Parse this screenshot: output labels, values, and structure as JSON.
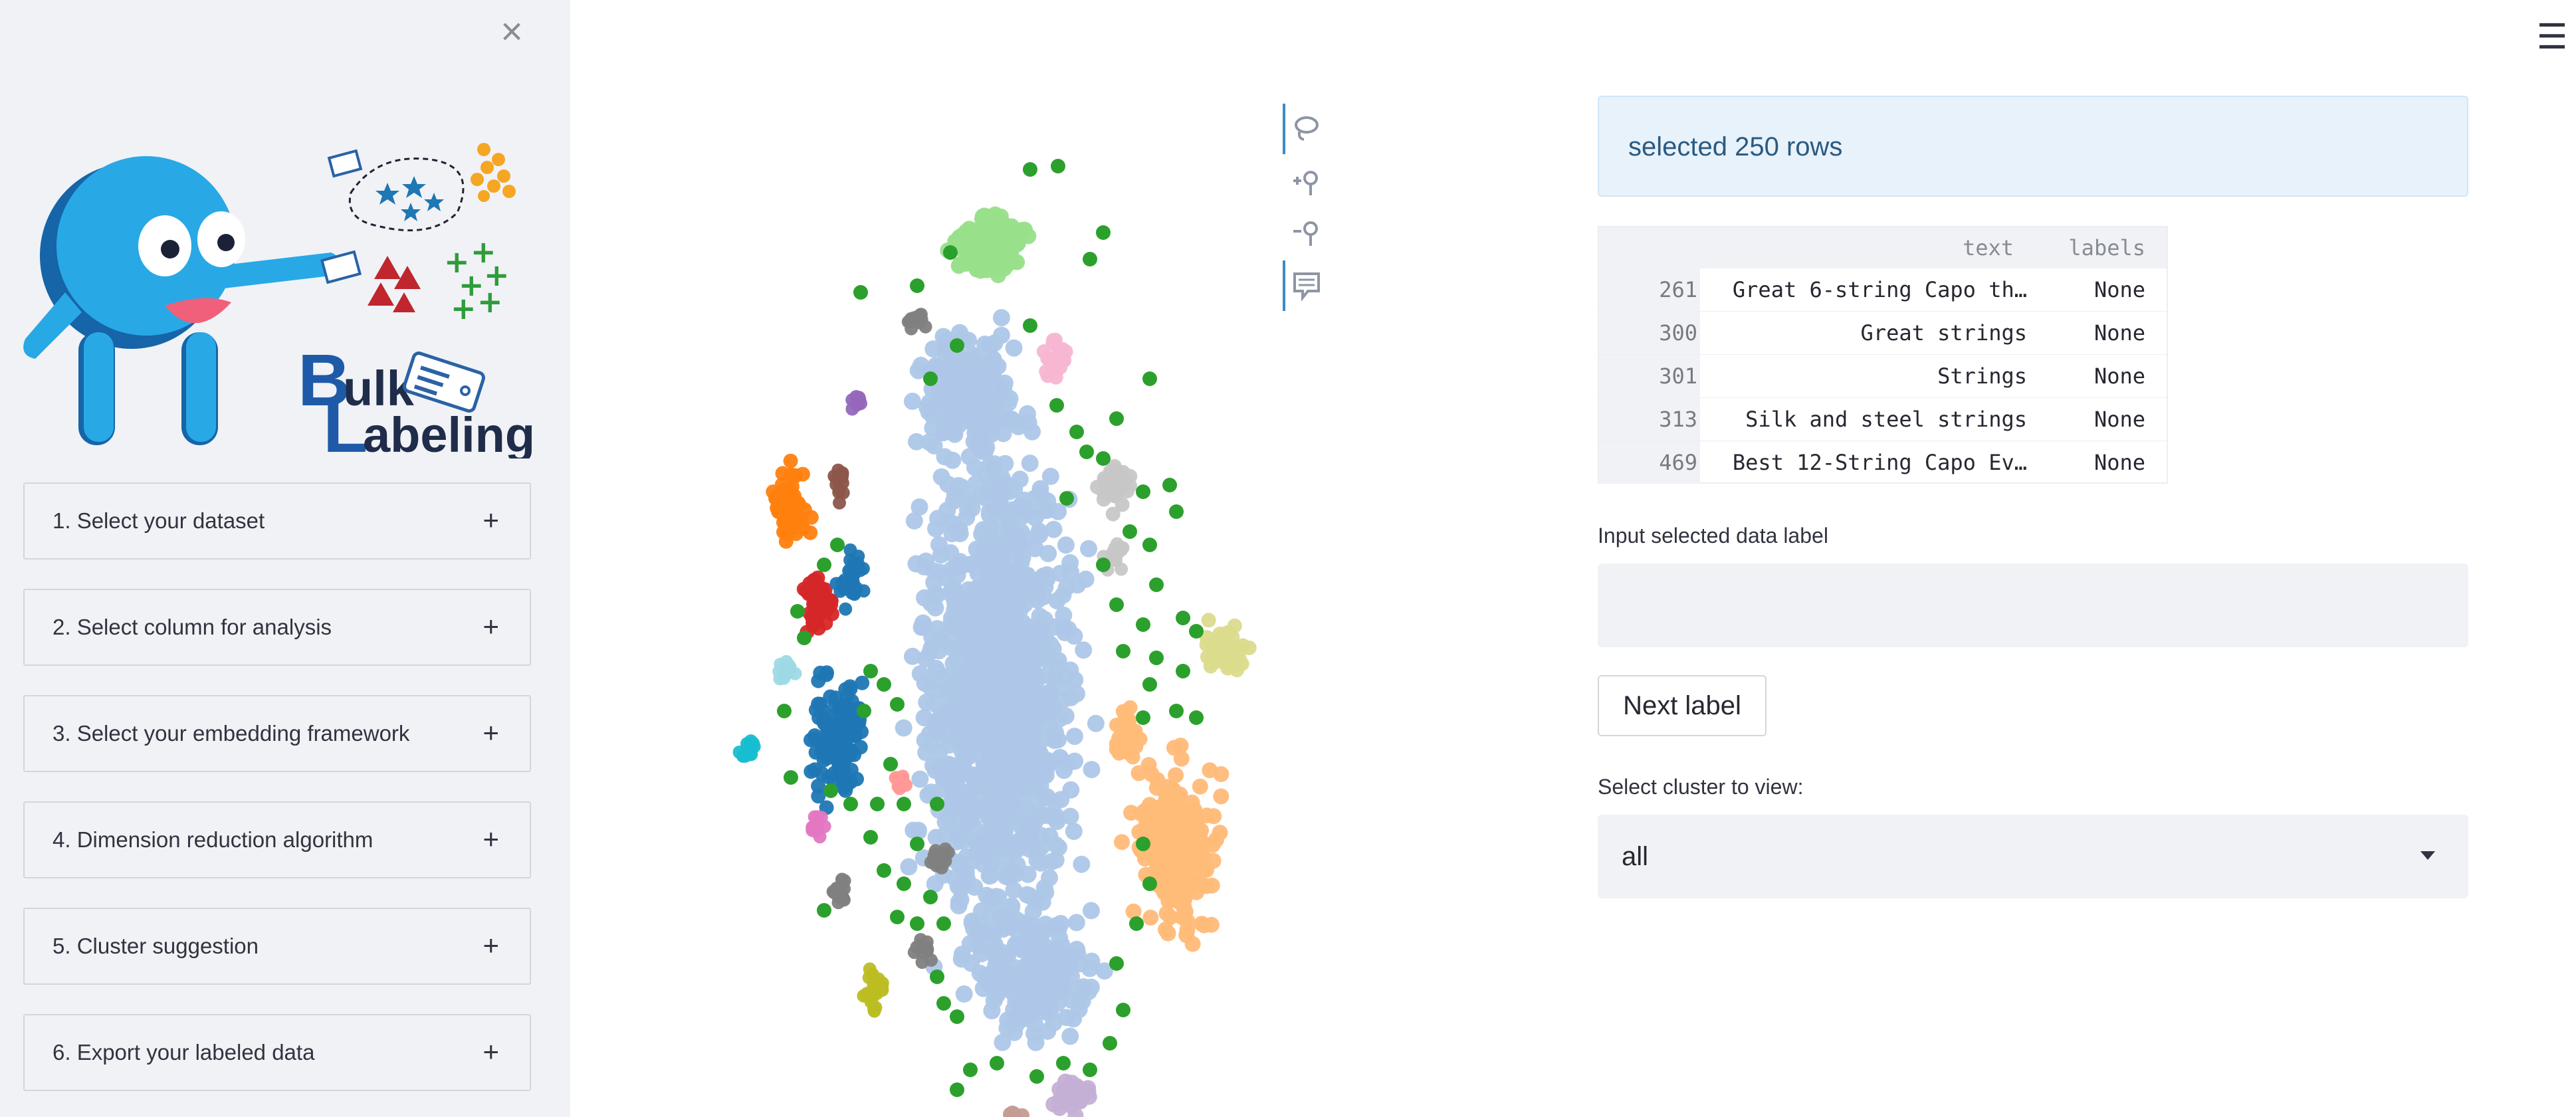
{
  "sidebar": {
    "logo": {
      "wordmark_line1": "ulk",
      "wordmark_initial1": "B",
      "wordmark_initial2": "L",
      "wordmark_line2": "abeling"
    },
    "expanders": [
      {
        "label": "1. Select your dataset"
      },
      {
        "label": "2. Select column for analysis"
      },
      {
        "label": "3. Select your embedding framework"
      },
      {
        "label": "4. Dimension reduction algorithm"
      },
      {
        "label": "5. Cluster suggestion"
      },
      {
        "label": "6. Export your labeled data"
      }
    ],
    "expand_icon": "plus-icon",
    "close_icon": "close-icon"
  },
  "menu_icon": "hamburger-icon",
  "plot_toolbar": [
    "lasso-select-icon",
    "zoom-in-icon",
    "zoom-out-icon",
    "hover-tooltip-icon"
  ],
  "chart_data": {
    "type": "scatter",
    "description_series_colors": [
      "#aec7e8",
      "#2ca02c",
      "#98df8a",
      "#ff7f0e",
      "#d62728",
      "#1f77b4",
      "#ffbb78",
      "#dbdb8d",
      "#c7c7c7",
      "#7f7f7f",
      "#9467bd",
      "#8c564b",
      "#e377c2",
      "#f7b6d2",
      "#17becf",
      "#9edae5",
      "#bcbd22",
      "#c5b0d5",
      "#ff9896",
      "#c49c94"
    ],
    "axes_visible": false,
    "grid": false
  },
  "selection": {
    "message": "selected 250 rows"
  },
  "table": {
    "columns": [
      "text",
      "labels"
    ],
    "rows": [
      {
        "index": "261",
        "text": "Great 6-string Capo th…",
        "labels": "None"
      },
      {
        "index": "300",
        "text": "Great strings",
        "labels": "None"
      },
      {
        "index": "301",
        "text": "Strings",
        "labels": "None"
      },
      {
        "index": "313",
        "text": "Silk and steel strings",
        "labels": "None"
      },
      {
        "index": "469",
        "text": "Best 12-String Capo Ev…",
        "labels": "None"
      }
    ]
  },
  "label_input": {
    "label": "Input selected data label",
    "value": ""
  },
  "next_button": {
    "label": "Next label"
  },
  "cluster_select": {
    "label": "Select cluster to view:",
    "value": "all"
  }
}
